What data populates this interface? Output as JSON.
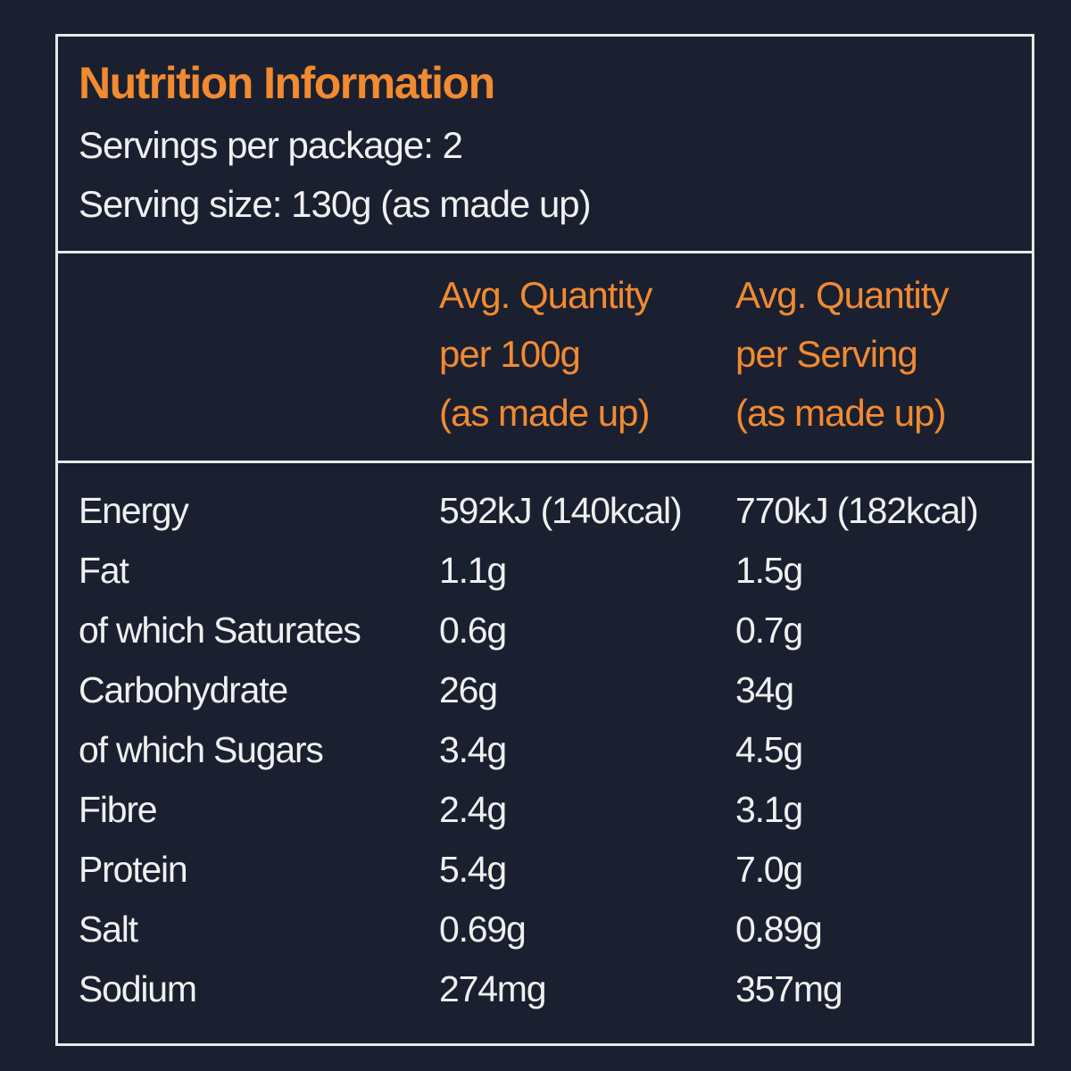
{
  "header": {
    "title": "Nutrition Information",
    "servings": "Servings per package: 2",
    "serving_size": "Serving size: 130g (as made up)"
  },
  "table": {
    "columns": [
      [
        "Avg. Quantity",
        "per 100g",
        "(as made up)"
      ],
      [
        "Avg. Quantity",
        "per Serving",
        "(as made up)"
      ]
    ],
    "rows": [
      [
        "Energy",
        "592kJ (140kcal)",
        "770kJ (182kcal)"
      ],
      [
        "Fat",
        "1.1g",
        "1.5g"
      ],
      [
        "of which Saturates",
        "0.6g",
        "0.7g"
      ],
      [
        "Carbohydrate",
        "26g",
        "34g"
      ],
      [
        "of which Sugars",
        "3.4g",
        "4.5g"
      ],
      [
        "Fibre",
        "2.4g",
        "3.1g"
      ],
      [
        "Protein",
        "5.4g",
        "7.0g"
      ],
      [
        "Salt",
        "0.69g",
        "0.89g"
      ],
      [
        "Sodium",
        "274mg",
        "357mg"
      ]
    ]
  }
}
